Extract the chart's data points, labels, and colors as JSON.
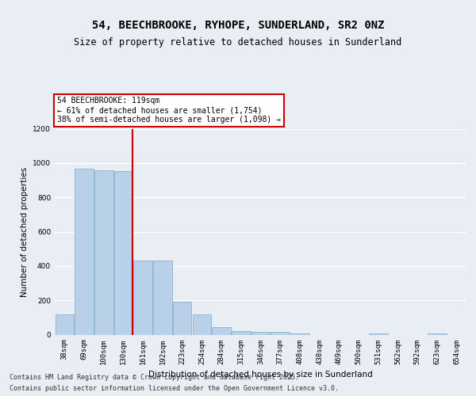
{
  "title_line1": "54, BEECHBROOKE, RYHOPE, SUNDERLAND, SR2 0NZ",
  "title_line2": "Size of property relative to detached houses in Sunderland",
  "xlabel": "Distribution of detached houses by size in Sunderland",
  "ylabel": "Number of detached properties",
  "categories": [
    "38sqm",
    "69sqm",
    "100sqm",
    "130sqm",
    "161sqm",
    "192sqm",
    "223sqm",
    "254sqm",
    "284sqm",
    "315sqm",
    "346sqm",
    "377sqm",
    "408sqm",
    "438sqm",
    "469sqm",
    "500sqm",
    "531sqm",
    "562sqm",
    "592sqm",
    "623sqm",
    "654sqm"
  ],
  "values": [
    120,
    965,
    960,
    955,
    430,
    430,
    190,
    120,
    45,
    20,
    15,
    15,
    8,
    0,
    0,
    0,
    8,
    0,
    0,
    8,
    0
  ],
  "bar_color": "#b8d0e8",
  "bar_edge_color": "#7aaaca",
  "highlight_bar_index": 3,
  "highlight_color": "#cc0000",
  "annotation_text": "54 BEECHBROOKE: 119sqm\n← 61% of detached houses are smaller (1,754)\n38% of semi-detached houses are larger (1,098) →",
  "annotation_box_facecolor": "#ffffff",
  "annotation_box_edgecolor": "#cc0000",
  "ylim": [
    0,
    1200
  ],
  "yticks": [
    0,
    200,
    400,
    600,
    800,
    1000,
    1200
  ],
  "background_color": "#e8eef4",
  "plot_bg_color": "#e8eef4",
  "grid_color": "#ffffff",
  "footer_line1": "Contains HM Land Registry data © Crown copyright and database right 2025.",
  "footer_line2": "Contains public sector information licensed under the Open Government Licence v3.0.",
  "title_fontsize": 10,
  "subtitle_fontsize": 8.5,
  "axis_label_fontsize": 7.5,
  "tick_fontsize": 6.5,
  "annotation_fontsize": 7,
  "footer_fontsize": 6
}
